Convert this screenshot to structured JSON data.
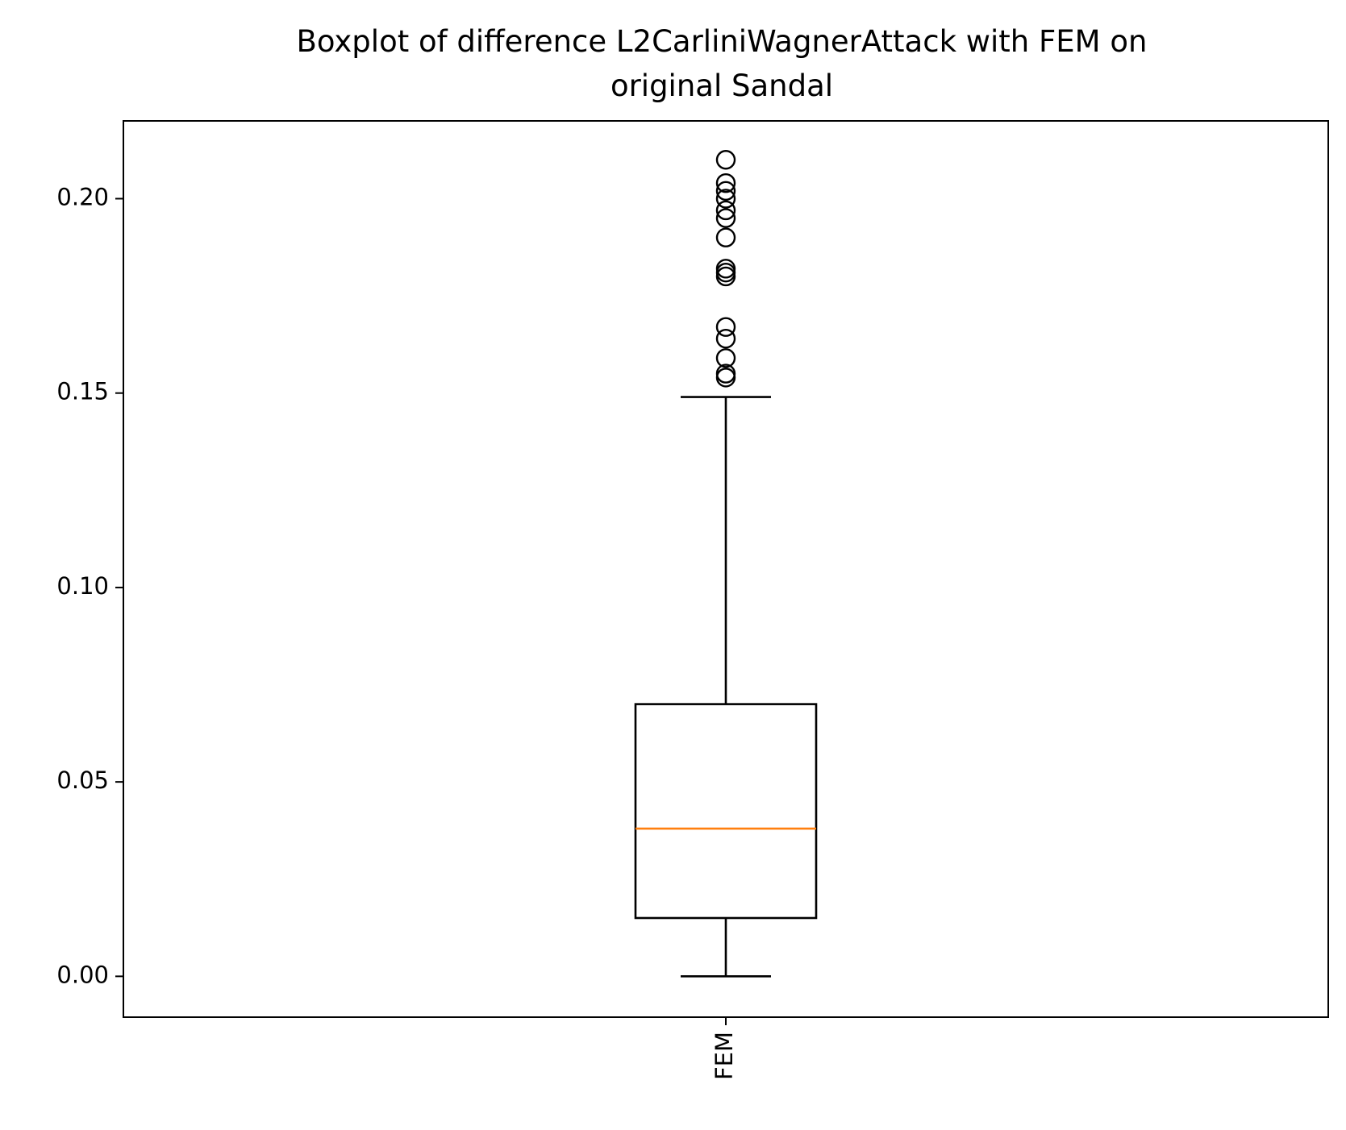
{
  "chart_data": {
    "type": "box",
    "title_lines": [
      "Boxplot of difference L2CarliniWagnerAttack with FEM on",
      "original Sandal"
    ],
    "xlabel": "",
    "ylabel": "",
    "categories": [
      "FEM"
    ],
    "x_tick_rotation": "vertical",
    "ylim": [
      -0.0105,
      0.22
    ],
    "yticks": [
      0.0,
      0.05,
      0.1,
      0.15,
      0.2
    ],
    "ytick_labels": [
      "0.00",
      "0.05",
      "0.10",
      "0.15",
      "0.20"
    ],
    "grid": false,
    "legend": "none",
    "boxes": [
      {
        "name": "FEM",
        "whisker_low": 0.0,
        "q1": 0.015,
        "median": 0.038,
        "q3": 0.07,
        "whisker_high": 0.149,
        "outliers": [
          0.154,
          0.155,
          0.159,
          0.164,
          0.167,
          0.18,
          0.181,
          0.182,
          0.19,
          0.195,
          0.197,
          0.2,
          0.202,
          0.204,
          0.21
        ]
      }
    ],
    "colors": {
      "box": "#000000",
      "median": "#ff7f0e",
      "whisker": "#000000",
      "outlier": "#000000"
    }
  }
}
